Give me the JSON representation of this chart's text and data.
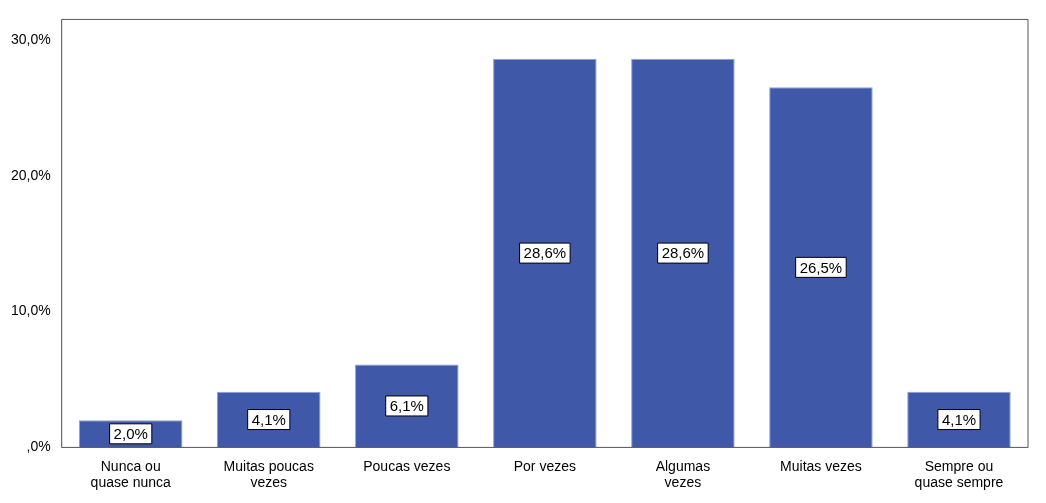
{
  "chart_data": {
    "type": "bar",
    "categories": [
      "Nunca ou quase nunca",
      "Muitas poucas vezes",
      "Poucas vezes",
      "Por vezes",
      "Algumas vezes",
      "Muitas vezes",
      "Sempre ou quase sempre"
    ],
    "values": [
      2.0,
      4.1,
      6.1,
      28.6,
      28.6,
      26.5,
      4.1
    ],
    "value_labels": [
      "2,0%",
      "4,1%",
      "6,1%",
      "28,6%",
      "28,6%",
      "26,5%",
      "4,1%"
    ],
    "color": "#3f58a8",
    "ylim": [
      0,
      31.5
    ],
    "yticks": [
      {
        "value": 0,
        "label": ",0%"
      },
      {
        "value": 10,
        "label": "10,0%"
      },
      {
        "value": 20,
        "label": "20,0%"
      },
      {
        "value": 30,
        "label": "30,0%"
      }
    ],
    "grid": false,
    "legend": false
  }
}
